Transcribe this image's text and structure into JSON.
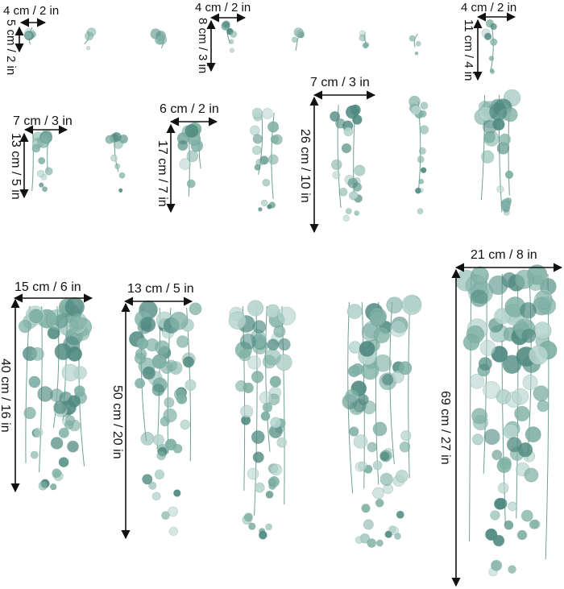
{
  "palette": {
    "leaf_dark": "#4f8a80",
    "leaf_mid": "#7fb0a5",
    "leaf_light": "#b6d4cd",
    "stem": "#6f9f90",
    "line": "#111111"
  },
  "stickers": [
    {
      "id": "s1",
      "width_label": "4 cm / 2 in",
      "height_label": "5 cm / 2 in"
    },
    {
      "id": "s2",
      "width_label": "4 cm / 2 in",
      "height_label": "8 cm / 3 in"
    },
    {
      "id": "s3",
      "width_label": "4 cm / 2 in",
      "height_label": "11 cm / 4 in"
    },
    {
      "id": "s4",
      "width_label": "7 cm / 3 in",
      "height_label": "13 cm / 5 in"
    },
    {
      "id": "s5",
      "width_label": "6 cm / 2 in",
      "height_label": "17 cm / 7 in"
    },
    {
      "id": "s6",
      "width_label": "7 cm / 3 in",
      "height_label": "26 cm / 10 in"
    },
    {
      "id": "s7",
      "width_label": "15 cm / 6 in",
      "height_label": "40 cm / 16 in"
    },
    {
      "id": "s8",
      "width_label": "13 cm / 5 in",
      "height_label": "50 cm / 20 in"
    },
    {
      "id": "s9",
      "width_label": "21 cm / 8 in",
      "height_label": "69 cm / 27 in"
    }
  ]
}
